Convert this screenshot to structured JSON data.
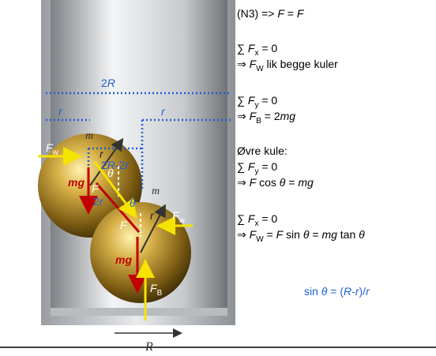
{
  "equations": {
    "n3": [
      "(N3) => ",
      "F",
      " = ",
      "F"
    ],
    "sum_x": [
      "∑ ",
      "F",
      "x",
      " = 0"
    ],
    "walls": [
      "⇒ ",
      "F",
      "W",
      " lik begge kuler"
    ],
    "sum_y": [
      "∑ ",
      "F",
      "y",
      " = 0"
    ],
    "floor": [
      "⇒ ",
      "F",
      "B",
      "  = 2",
      "mg"
    ],
    "upper_heading": [
      "Øvre kule:"
    ],
    "upper_sum_y": [
      "∑ ",
      "F",
      "y",
      " = 0"
    ],
    "upper_y": [
      "⇒ ",
      "F",
      " cos ",
      "θ",
      "  = ",
      "mg"
    ],
    "upper_sum_x": [
      "∑ ",
      "F",
      "x",
      " = 0"
    ],
    "upper_x": [
      "⇒ ",
      "F",
      "W",
      " = ",
      "F",
      " sin ",
      "θ",
      "  = ",
      "mg",
      " tan ",
      "θ"
    ],
    "geometry": [
      "sin ",
      "θ",
      " = (",
      "R",
      "-",
      "r",
      ")/",
      "r"
    ]
  },
  "diagram_labels": {
    "width_2r": [
      "2",
      "R"
    ],
    "radius_left": [
      "r"
    ],
    "radius_right": [
      "r"
    ],
    "mass_upper": [
      "m"
    ],
    "ball_radius_upper": [
      "r"
    ],
    "offset": [
      "2",
      "R",
      "-2",
      "r"
    ],
    "wall_force_left": [
      "F",
      "w"
    ],
    "weight_upper": [
      "mg"
    ],
    "contact_force_upper": [
      "F"
    ],
    "angle_upper": [
      "θ"
    ],
    "center_distance": [
      "2",
      "r"
    ],
    "angle_lower": [
      "θ"
    ],
    "mass_lower": [
      "m"
    ],
    "ball_radius_lower": [
      "r"
    ],
    "contact_force_lower": [
      "F"
    ],
    "wall_force_right": [
      "F",
      "w"
    ],
    "weight_lower": [
      "mg"
    ],
    "floor_force": [
      "F",
      "B"
    ],
    "container_radius": [
      "R"
    ]
  }
}
